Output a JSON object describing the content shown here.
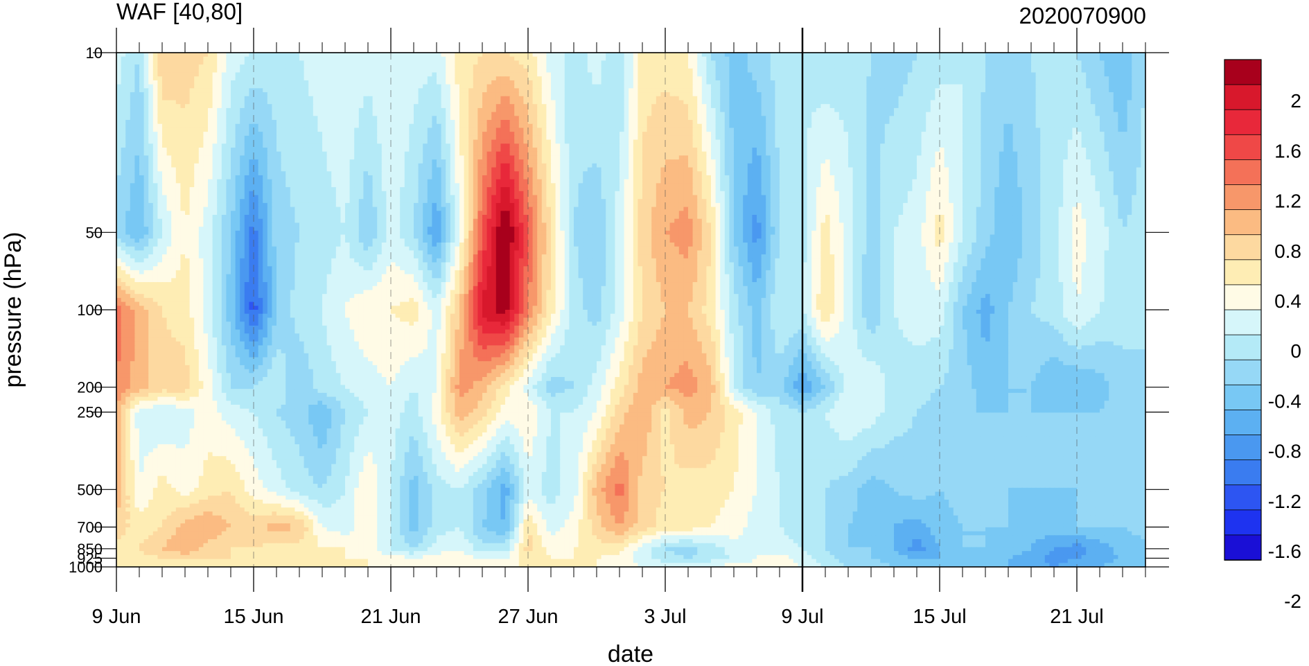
{
  "chart_data": {
    "type": "heatmap",
    "title": "WAF [40,80]",
    "subtitle": "2020070900",
    "xlabel": "date",
    "ylabel": "pressure (hPa)",
    "x_ticks": [
      "9 Jun",
      "15 Jun",
      "21 Jun",
      "27 Jun",
      "3 Jul",
      "9 Jul",
      "15 Jul",
      "21 Jul"
    ],
    "y_ticks": [
      "10",
      "50",
      "100",
      "200",
      "250",
      "500",
      "700",
      "850",
      "925",
      "1000"
    ],
    "y_scale": "log",
    "ylim": [
      1000,
      10
    ],
    "xlim": [
      "2020-06-09",
      "2020-07-24"
    ],
    "forecast_divider": "2020-07-09",
    "colorbar_labels": [
      "2",
      "1.6",
      "1.2",
      "0.8",
      "0.4",
      "0",
      "-0.4",
      "-0.8",
      "-1.2",
      "-1.6",
      "-2"
    ],
    "levels": [
      -2.2,
      -2.0,
      -1.8,
      -1.6,
      -1.4,
      -1.2,
      -1.0,
      -0.8,
      -0.6,
      -0.4,
      -0.2,
      0,
      0.2,
      0.4,
      0.6,
      0.8,
      1.0,
      1.2,
      1.4,
      1.6,
      1.8,
      2.0
    ],
    "colors": [
      "#1a0fd6",
      "#1e33f0",
      "#2d55f2",
      "#3a7cf0",
      "#4a98f0",
      "#5cb0f2",
      "#78c8f4",
      "#96d8f6",
      "#b4eaf7",
      "#d6f6fa",
      "#fffbe6",
      "#feedb4",
      "#fdd9a0",
      "#fbbb82",
      "#f7976a",
      "#f47158",
      "#ef4847",
      "#e8283a",
      "#d8182c",
      "#a8001c"
    ],
    "dates": [
      "2020-06-09",
      "2020-06-10",
      "2020-06-11",
      "2020-06-12",
      "2020-06-13",
      "2020-06-14",
      "2020-06-15",
      "2020-06-16",
      "2020-06-17",
      "2020-06-18",
      "2020-06-19",
      "2020-06-20",
      "2020-06-21",
      "2020-06-22",
      "2020-06-23",
      "2020-06-24",
      "2020-06-25",
      "2020-06-26",
      "2020-06-27",
      "2020-06-28",
      "2020-06-29",
      "2020-06-30",
      "2020-07-01",
      "2020-07-02",
      "2020-07-03",
      "2020-07-04",
      "2020-07-05",
      "2020-07-06",
      "2020-07-07",
      "2020-07-08",
      "2020-07-09",
      "2020-07-10",
      "2020-07-11",
      "2020-07-12",
      "2020-07-13",
      "2020-07-14",
      "2020-07-15",
      "2020-07-16",
      "2020-07-17",
      "2020-07-18",
      "2020-07-19",
      "2020-07-20",
      "2020-07-21",
      "2020-07-22",
      "2020-07-23",
      "2020-07-24"
    ],
    "pressure_levels": [
      10,
      50,
      100,
      200,
      250,
      500,
      700,
      850,
      925,
      1000
    ],
    "values": [
      [
        -0.3,
        -0.6,
        0.4,
        0.3,
        0.2,
        -0.3,
        -0.4,
        -0.5,
        -0.4,
        -0.3,
        -0.2,
        -0.3,
        -0.2,
        -0.3,
        -0.3,
        0.1,
        0.2,
        0.2,
        0.1,
        -0.3,
        -0.5,
        -0.3,
        -0.6,
        0.1,
        0.1,
        0.0,
        -0.6,
        -0.9,
        -0.7,
        -0.5,
        -0.4,
        -0.6,
        -0.5,
        -0.6,
        -0.7,
        -0.6,
        -0.5,
        -0.4,
        -0.6,
        -0.7,
        -0.6,
        -0.5,
        -0.6,
        -0.8,
        -1.0,
        -0.6
      ],
      [
        -0.7,
        -1.0,
        -0.4,
        0.0,
        -0.3,
        -0.8,
        -1.5,
        -0.7,
        -0.6,
        -0.5,
        -0.4,
        -0.8,
        -0.3,
        -0.6,
        -1.2,
        -0.2,
        1.0,
        1.9,
        1.0,
        0.2,
        -0.6,
        -0.8,
        -0.3,
        0.3,
        0.6,
        0.7,
        0.2,
        -0.8,
        -1.3,
        -0.6,
        -0.5,
        0.1,
        -0.3,
        -0.7,
        -0.4,
        -0.3,
        0.1,
        -0.4,
        -0.7,
        -1.0,
        -0.7,
        -0.5,
        -0.1,
        -0.3,
        -0.6,
        -0.5
      ],
      [
        0.9,
        0.5,
        0.2,
        0.1,
        -0.3,
        -0.9,
        -1.7,
        -0.8,
        -0.5,
        -0.4,
        -0.2,
        0.0,
        0.0,
        0.1,
        -0.3,
        0.4,
        1.5,
        1.7,
        0.8,
        0.1,
        -0.5,
        -0.7,
        -0.3,
        0.2,
        0.4,
        0.4,
        0.1,
        -0.5,
        -0.9,
        -0.4,
        -0.4,
        0.2,
        -0.3,
        -0.8,
        -0.4,
        -0.3,
        -0.3,
        -0.8,
        -1.1,
        -0.8,
        -0.6,
        -0.5,
        -0.2,
        -0.4,
        -0.5,
        -0.6
      ],
      [
        0.8,
        0.5,
        0.3,
        0.3,
        -0.1,
        -0.6,
        -0.6,
        -0.4,
        -0.8,
        -0.5,
        -0.4,
        -0.3,
        -0.2,
        -0.4,
        -0.2,
        0.7,
        0.5,
        0.1,
        -0.3,
        -0.7,
        -0.6,
        -0.3,
        0.1,
        0.5,
        0.6,
        0.7,
        0.5,
        -0.4,
        -0.8,
        -0.7,
        -1.2,
        -0.8,
        -0.3,
        -0.2,
        -0.5,
        -0.5,
        -0.6,
        -0.7,
        -0.9,
        -0.8,
        -0.8,
        -1.0,
        -1.0,
        -0.9,
        -0.7,
        -0.6
      ],
      [
        0.5,
        -0.3,
        -0.4,
        -0.3,
        -0.1,
        -0.3,
        -0.4,
        -0.6,
        -0.7,
        -1.0,
        -0.6,
        -0.4,
        -0.3,
        -0.5,
        -0.1,
        0.5,
        0.3,
        -0.1,
        0.0,
        -0.4,
        -0.4,
        -0.2,
        0.3,
        0.6,
        0.1,
        0.5,
        0.4,
        0.1,
        -0.2,
        -0.5,
        -0.6,
        -0.4,
        -0.2,
        -0.3,
        -0.5,
        -0.6,
        -0.7,
        -0.8,
        -0.8,
        -0.8,
        -0.8,
        -0.8,
        -0.8,
        -0.8,
        -0.7,
        -0.7
      ],
      [
        0.6,
        -0.2,
        0.1,
        -0.1,
        0.1,
        0.2,
        -0.1,
        -0.3,
        -0.5,
        -0.6,
        -0.4,
        0.0,
        -0.4,
        -0.9,
        -0.5,
        -0.4,
        -0.7,
        -1.1,
        -0.3,
        -0.5,
        -0.3,
        0.5,
        0.9,
        0.3,
        0.2,
        0.1,
        0.1,
        0.0,
        -0.2,
        -0.4,
        -0.5,
        -0.6,
        -0.7,
        -0.9,
        -0.8,
        -0.7,
        -0.8,
        -0.7,
        -0.7,
        -0.8,
        -0.8,
        -0.8,
        -0.8,
        -0.8,
        -0.7,
        -0.7
      ],
      [
        0.3,
        0.1,
        0.2,
        0.5,
        0.6,
        0.4,
        0.3,
        0.5,
        0.4,
        -0.2,
        -0.3,
        -0.1,
        -0.4,
        -0.9,
        -0.5,
        -0.4,
        -0.8,
        -1.0,
        0.2,
        -0.3,
        -0.1,
        0.3,
        0.6,
        0.3,
        0.1,
        0.1,
        0.0,
        -0.1,
        -0.3,
        -0.4,
        -0.5,
        -0.6,
        -0.8,
        -0.9,
        -1.0,
        -1.1,
        -0.9,
        -0.8,
        -0.8,
        -0.8,
        -0.9,
        -0.9,
        -0.8,
        -0.8,
        -0.8,
        -0.7
      ],
      [
        0.1,
        0.2,
        0.4,
        0.6,
        0.3,
        0.2,
        0.2,
        0.1,
        0.1,
        0.0,
        0.0,
        -0.1,
        -0.4,
        -0.6,
        -0.3,
        -0.2,
        -0.5,
        -0.5,
        0.3,
        -0.1,
        0.0,
        0.1,
        0.1,
        -0.3,
        -0.6,
        -0.7,
        -0.5,
        -0.3,
        -0.2,
        -0.3,
        -0.4,
        -0.6,
        -0.8,
        -0.8,
        -1.0,
        -1.3,
        -1.0,
        -0.8,
        -0.8,
        -0.9,
        -1.0,
        -1.2,
        -1.3,
        -1.1,
        -0.9,
        -0.9
      ],
      [
        0.0,
        0.1,
        0.2,
        0.2,
        0.2,
        0.2,
        0.1,
        0.1,
        0.1,
        0.1,
        0.0,
        0.0,
        -0.1,
        -0.2,
        -0.1,
        -0.1,
        -0.2,
        -0.2,
        0.1,
        0.0,
        0.0,
        0.0,
        -0.1,
        -0.3,
        -0.5,
        -0.6,
        -0.5,
        -0.4,
        -0.2,
        -0.1,
        -0.3,
        -0.5,
        -0.7,
        -0.8,
        -0.9,
        -1.0,
        -1.0,
        -0.9,
        -0.9,
        -1.0,
        -1.1,
        -1.3,
        -1.2,
        -1.1,
        -1.0,
        -0.9
      ],
      [
        0.0,
        0.0,
        0.1,
        0.1,
        0.1,
        0.1,
        0.1,
        0.1,
        0.1,
        0.0,
        0.0,
        0.0,
        0.0,
        0.0,
        0.0,
        0.0,
        0.0,
        0.0,
        0.0,
        0.0,
        0.0,
        0.0,
        -0.1,
        -0.2,
        -0.3,
        -0.3,
        -0.2,
        -0.1,
        -0.1,
        0.0,
        -0.2,
        -0.4,
        -0.6,
        -0.7,
        -0.8,
        -0.9,
        -0.9,
        -0.9,
        -0.9,
        -1.0,
        -1.1,
        -1.2,
        -1.1,
        -1.0,
        -0.9,
        -0.9
      ]
    ]
  }
}
